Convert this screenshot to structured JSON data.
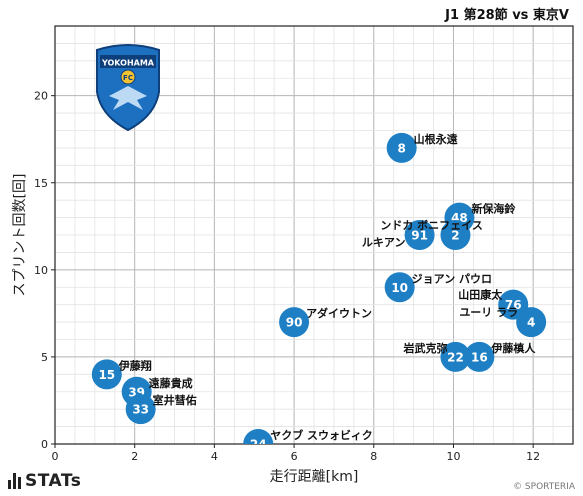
{
  "header": {
    "title": "J1 第28節 vs 東京V"
  },
  "brand": {
    "name": "STATs",
    "credit": "© SPORTERIA"
  },
  "logo": {
    "text": "YOKOHAMA",
    "badge": "FC"
  },
  "chart_data": {
    "type": "scatter",
    "title": "J1 第28節 vs 東京V",
    "xlabel": "走行距離[km]",
    "ylabel": "スプリント回数[回]",
    "xlim": [
      0,
      13
    ],
    "ylim": [
      0,
      24
    ],
    "xticks": [
      0,
      2,
      4,
      6,
      8,
      10,
      12
    ],
    "yticks": [
      0,
      5,
      10,
      15,
      20
    ],
    "grid": true,
    "marker_color": "#1f7fc4",
    "points": [
      {
        "number": "8",
        "name": "山根永遠",
        "x": 8.7,
        "y": 17
      },
      {
        "number": "48",
        "name": "新保海鈴",
        "x": 10.15,
        "y": 13
      },
      {
        "number": "91",
        "name": "ンドカ ボニフェイス",
        "x": 9.15,
        "y": 12
      },
      {
        "number": "2",
        "name": "ルキアン",
        "x": 10.05,
        "y": 12
      },
      {
        "number": "10",
        "name": "ジョアン パウロ",
        "x": 8.65,
        "y": 9
      },
      {
        "number": "76",
        "name": "山田康太",
        "x": 11.5,
        "y": 8
      },
      {
        "number": "4",
        "name": "ユーリ ララ",
        "x": 11.95,
        "y": 7
      },
      {
        "number": "90",
        "name": "アダイウトン",
        "x": 6.0,
        "y": 7
      },
      {
        "number": "22",
        "name": "岩武克弥",
        "x": 10.05,
        "y": 5
      },
      {
        "number": "16",
        "name": "伊藤槙人",
        "x": 10.65,
        "y": 5
      },
      {
        "number": "15",
        "name": "伊藤翔",
        "x": 1.3,
        "y": 4
      },
      {
        "number": "39",
        "name": "遠藤貴成",
        "x": 2.05,
        "y": 3
      },
      {
        "number": "33",
        "name": "室井彗佑",
        "x": 2.15,
        "y": 2
      },
      {
        "number": "24",
        "name": "ヤクブ スウォビィク",
        "x": 5.1,
        "y": 0
      }
    ]
  }
}
